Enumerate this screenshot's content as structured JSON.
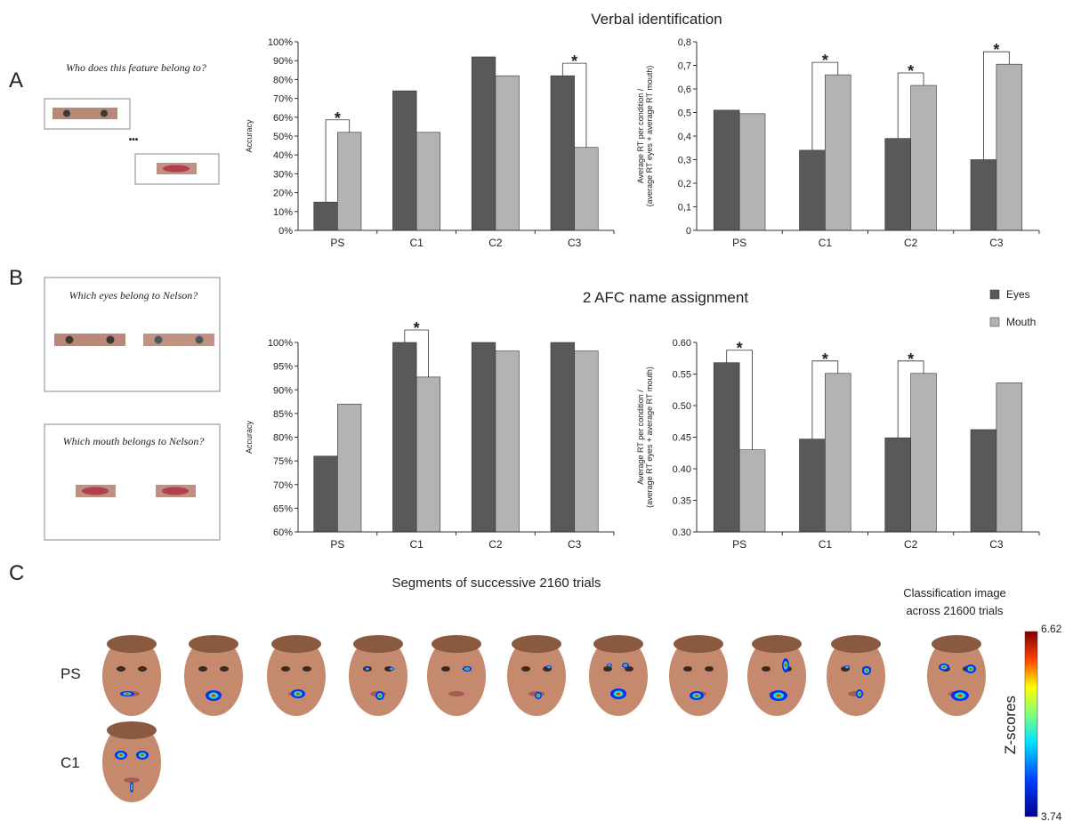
{
  "panel_a": {
    "label": "A",
    "title": "Verbal identification",
    "prompt": "Who does this feature belong to?",
    "ellipsis": "•••"
  },
  "panel_b": {
    "label": "B",
    "title": "2 AFC name assignment",
    "prompts": [
      "Which eyes belong to Nelson?",
      "Which mouth belongs to Nelson?"
    ]
  },
  "panel_c": {
    "label": "C",
    "title": "Segments of successive 2160 trials",
    "rows": [
      "PS",
      "C1"
    ],
    "summary_title": [
      "Classification image",
      "across 21600 trials"
    ],
    "colorbar": {
      "label": "Z-scores",
      "max": 6.62,
      "min": 3.74
    }
  },
  "chart_data": [
    {
      "type": "bar",
      "ylabel": [
        "Accuracy"
      ],
      "categories": [
        "PS",
        "C1",
        "C2",
        "C3"
      ],
      "series": [
        {
          "name": "Eyes",
          "color": "#595959",
          "values": [
            15,
            74,
            92,
            82
          ]
        },
        {
          "name": "Mouth",
          "color": "#b3b3b3",
          "values": [
            52,
            52,
            82,
            44
          ]
        }
      ],
      "ylim": [
        0,
        100
      ],
      "yticks": [
        {
          "value": 0,
          "label": "0%"
        },
        {
          "value": 10,
          "label": "10%"
        },
        {
          "value": 20,
          "label": "20%"
        },
        {
          "value": 30,
          "label": "30%"
        },
        {
          "value": 40,
          "label": "40%"
        },
        {
          "value": 50,
          "label": "50%"
        },
        {
          "value": 60,
          "label": "60%"
        },
        {
          "value": 70,
          "label": "70%"
        },
        {
          "value": 80,
          "label": "80%"
        },
        {
          "value": 90,
          "label": "90%"
        },
        {
          "value": 100,
          "label": "100%"
        }
      ],
      "significant": [
        true,
        false,
        false,
        true
      ],
      "marker": "*"
    },
    {
      "type": "bar",
      "ylabel": [
        "Average RT per condition /",
        "(average RT eyes + average RT mouth)"
      ],
      "categories": [
        "PS",
        "C1",
        "C2",
        "C3"
      ],
      "series": [
        {
          "name": "Eyes",
          "color": "#595959",
          "values": [
            0.51,
            0.34,
            0.39,
            0.3
          ]
        },
        {
          "name": "Mouth",
          "color": "#b3b3b3",
          "values": [
            0.495,
            0.66,
            0.615,
            0.705
          ]
        }
      ],
      "ylim": [
        0,
        0.8
      ],
      "yticks": [
        0,
        {
          "value": 0.1,
          "label": "0,1"
        },
        {
          "value": 0.2,
          "label": "0,2"
        },
        {
          "value": 0.3,
          "label": "0,3"
        },
        {
          "value": 0.4,
          "label": "0,4"
        },
        {
          "value": 0.5,
          "label": "0,5"
        },
        {
          "value": 0.6,
          "label": "0,6"
        },
        {
          "value": 0.7,
          "label": "0,7"
        },
        {
          "value": 0.8,
          "label": "0,8"
        }
      ],
      "significant": [
        false,
        true,
        true,
        true
      ],
      "marker": "*"
    },
    {
      "type": "bar",
      "ylabel": [
        "Accuracy"
      ],
      "categories": [
        "PS",
        "C1",
        "C2",
        "C3"
      ],
      "series": [
        {
          "name": "Eyes",
          "color": "#595959",
          "values": [
            76,
            100,
            100,
            100
          ]
        },
        {
          "name": "Mouth",
          "color": "#b3b3b3",
          "values": [
            87,
            92.7,
            98.2,
            98.2
          ]
        }
      ],
      "ylim": [
        60,
        100
      ],
      "yticks": [
        {
          "value": 60,
          "label": "60%"
        },
        {
          "value": 65,
          "label": "65%"
        },
        {
          "value": 70,
          "label": "70%"
        },
        {
          "value": 75,
          "label": "75%"
        },
        {
          "value": 80,
          "label": "80%"
        },
        {
          "value": 85,
          "label": "85%"
        },
        {
          "value": 90,
          "label": "90%"
        },
        {
          "value": 95,
          "label": "95%"
        },
        {
          "value": 100,
          "label": "100%"
        }
      ],
      "significant": [
        false,
        true,
        false,
        false
      ],
      "marker": "*"
    },
    {
      "type": "bar",
      "ylabel": [
        "Average RT per condition /",
        "(average RT eyes + average RT mouth)"
      ],
      "categories": [
        "PS",
        "C1",
        "C2",
        "C3"
      ],
      "series": [
        {
          "name": "Eyes",
          "color": "#595959",
          "values": [
            0.568,
            0.447,
            0.449,
            0.462
          ]
        },
        {
          "name": "Mouth",
          "color": "#b3b3b3",
          "values": [
            0.43,
            0.551,
            0.551,
            0.536
          ]
        }
      ],
      "ylim": [
        0.3,
        0.6
      ],
      "yticks": [
        {
          "value": 0.3,
          "label": "0.30"
        },
        {
          "value": 0.35,
          "label": "0.35"
        },
        {
          "value": 0.4,
          "label": "0.40"
        },
        {
          "value": 0.45,
          "label": "0.45"
        },
        {
          "value": 0.5,
          "label": "0.50"
        },
        {
          "value": 0.55,
          "label": "0.55"
        },
        {
          "value": 0.6,
          "label": "0.60"
        }
      ],
      "significant": [
        true,
        true,
        true,
        false
      ],
      "marker": "*",
      "legend": "top-right"
    }
  ]
}
